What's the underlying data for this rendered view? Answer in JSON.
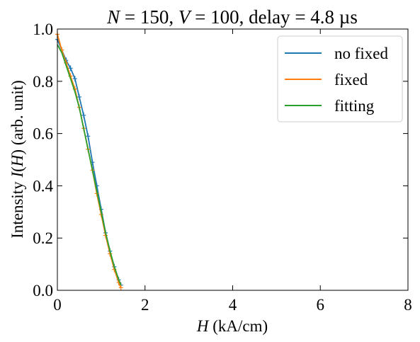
{
  "chart_data": {
    "type": "line",
    "title_parts": {
      "n_symbol": "N",
      "n_value": " = 150, ",
      "v_symbol": "V",
      "v_value": " = 100, delay = 4.8 µs"
    },
    "xlabel_parts": {
      "symbol": "H",
      "rest": " (kA/cm)"
    },
    "ylabel_parts": {
      "prefix": "Intensity ",
      "symbol": "I",
      "middle": "(",
      "arg": "H",
      "suffix": ") (arb. unit)"
    },
    "xlim": [
      0,
      8
    ],
    "ylim": [
      0.0,
      1.0
    ],
    "xticks": [
      0,
      2,
      4,
      6,
      8
    ],
    "xtick_labels": [
      "0",
      "2",
      "4",
      "6",
      "8"
    ],
    "yticks": [
      0.0,
      0.2,
      0.4,
      0.6,
      0.8,
      1.0
    ],
    "ytick_labels": [
      "0.0",
      "0.2",
      "0.4",
      "0.6",
      "0.8",
      "1.0"
    ],
    "grid": false,
    "legend_position": "top-right",
    "series": [
      {
        "name": "no fixed",
        "color": "#1f77b4",
        "x": [
          0.0,
          0.1,
          0.2,
          0.3,
          0.4,
          0.5,
          0.6,
          0.7,
          0.8,
          0.9,
          1.0,
          1.1,
          1.2,
          1.3,
          1.4,
          1.45
        ],
        "y": [
          0.96,
          0.92,
          0.88,
          0.85,
          0.81,
          0.74,
          0.67,
          0.59,
          0.49,
          0.4,
          0.31,
          0.22,
          0.15,
          0.09,
          0.04,
          0.02
        ],
        "markers": "errorbars"
      },
      {
        "name": "fixed",
        "color": "#ff7f0e",
        "x": [
          0.0,
          0.1,
          0.2,
          0.3,
          0.4,
          0.5,
          0.6,
          0.7,
          0.8,
          0.9,
          1.0,
          1.1,
          1.2,
          1.3,
          1.4,
          1.45
        ],
        "y": [
          0.98,
          0.92,
          0.87,
          0.82,
          0.77,
          0.7,
          0.62,
          0.54,
          0.46,
          0.37,
          0.29,
          0.21,
          0.14,
          0.08,
          0.03,
          0.01
        ],
        "markers": "errorbars"
      },
      {
        "name": "fitting",
        "color": "#2ca02c",
        "x": [
          0.0,
          0.1,
          0.2,
          0.3,
          0.4,
          0.5,
          0.6,
          0.7,
          0.8,
          0.9,
          1.0,
          1.1,
          1.2,
          1.3,
          1.4,
          1.45
        ],
        "y": [
          0.94,
          0.91,
          0.86,
          0.81,
          0.76,
          0.7,
          0.62,
          0.54,
          0.46,
          0.38,
          0.3,
          0.22,
          0.15,
          0.09,
          0.04,
          0.02
        ],
        "markers": "none"
      }
    ]
  }
}
